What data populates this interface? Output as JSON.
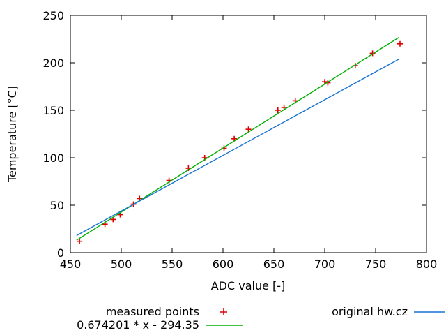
{
  "chart_data": {
    "type": "scatter",
    "title": "",
    "xlabel": "ADC value [-]",
    "ylabel": "Temperature [°C]",
    "xlim": [
      450,
      800
    ],
    "ylim": [
      0,
      250
    ],
    "xticks": [
      450,
      500,
      550,
      600,
      650,
      700,
      750,
      800
    ],
    "yticks": [
      0,
      50,
      100,
      150,
      200,
      250
    ],
    "grid": false,
    "legend_position": "below-plot",
    "axis_color": "#000000",
    "series": [
      {
        "name": "measured points",
        "type": "points",
        "marker": "plus",
        "color": "#e00000",
        "points": [
          [
            459,
            12
          ],
          [
            484,
            30
          ],
          [
            492,
            35
          ],
          [
            499,
            40
          ],
          [
            512,
            51
          ],
          [
            518,
            57
          ],
          [
            547,
            76
          ],
          [
            566,
            89
          ],
          [
            582,
            100
          ],
          [
            601,
            110
          ],
          [
            611,
            120
          ],
          [
            625,
            130
          ],
          [
            654,
            150
          ],
          [
            660,
            153
          ],
          [
            671,
            160
          ],
          [
            700,
            180
          ],
          [
            703,
            179
          ],
          [
            730,
            197
          ],
          [
            747,
            210
          ],
          [
            774,
            220
          ]
        ]
      },
      {
        "name": "0.674201 * x - 294.35",
        "type": "line",
        "color": "#00b000",
        "fit": {
          "slope": 0.674201,
          "intercept": -294.35,
          "x_range": [
            456,
            773
          ]
        }
      },
      {
        "name": "original hw.cz",
        "type": "line",
        "color": "#1874d2",
        "points": [
          [
            456,
            18
          ],
          [
            773,
            204
          ]
        ]
      }
    ]
  }
}
